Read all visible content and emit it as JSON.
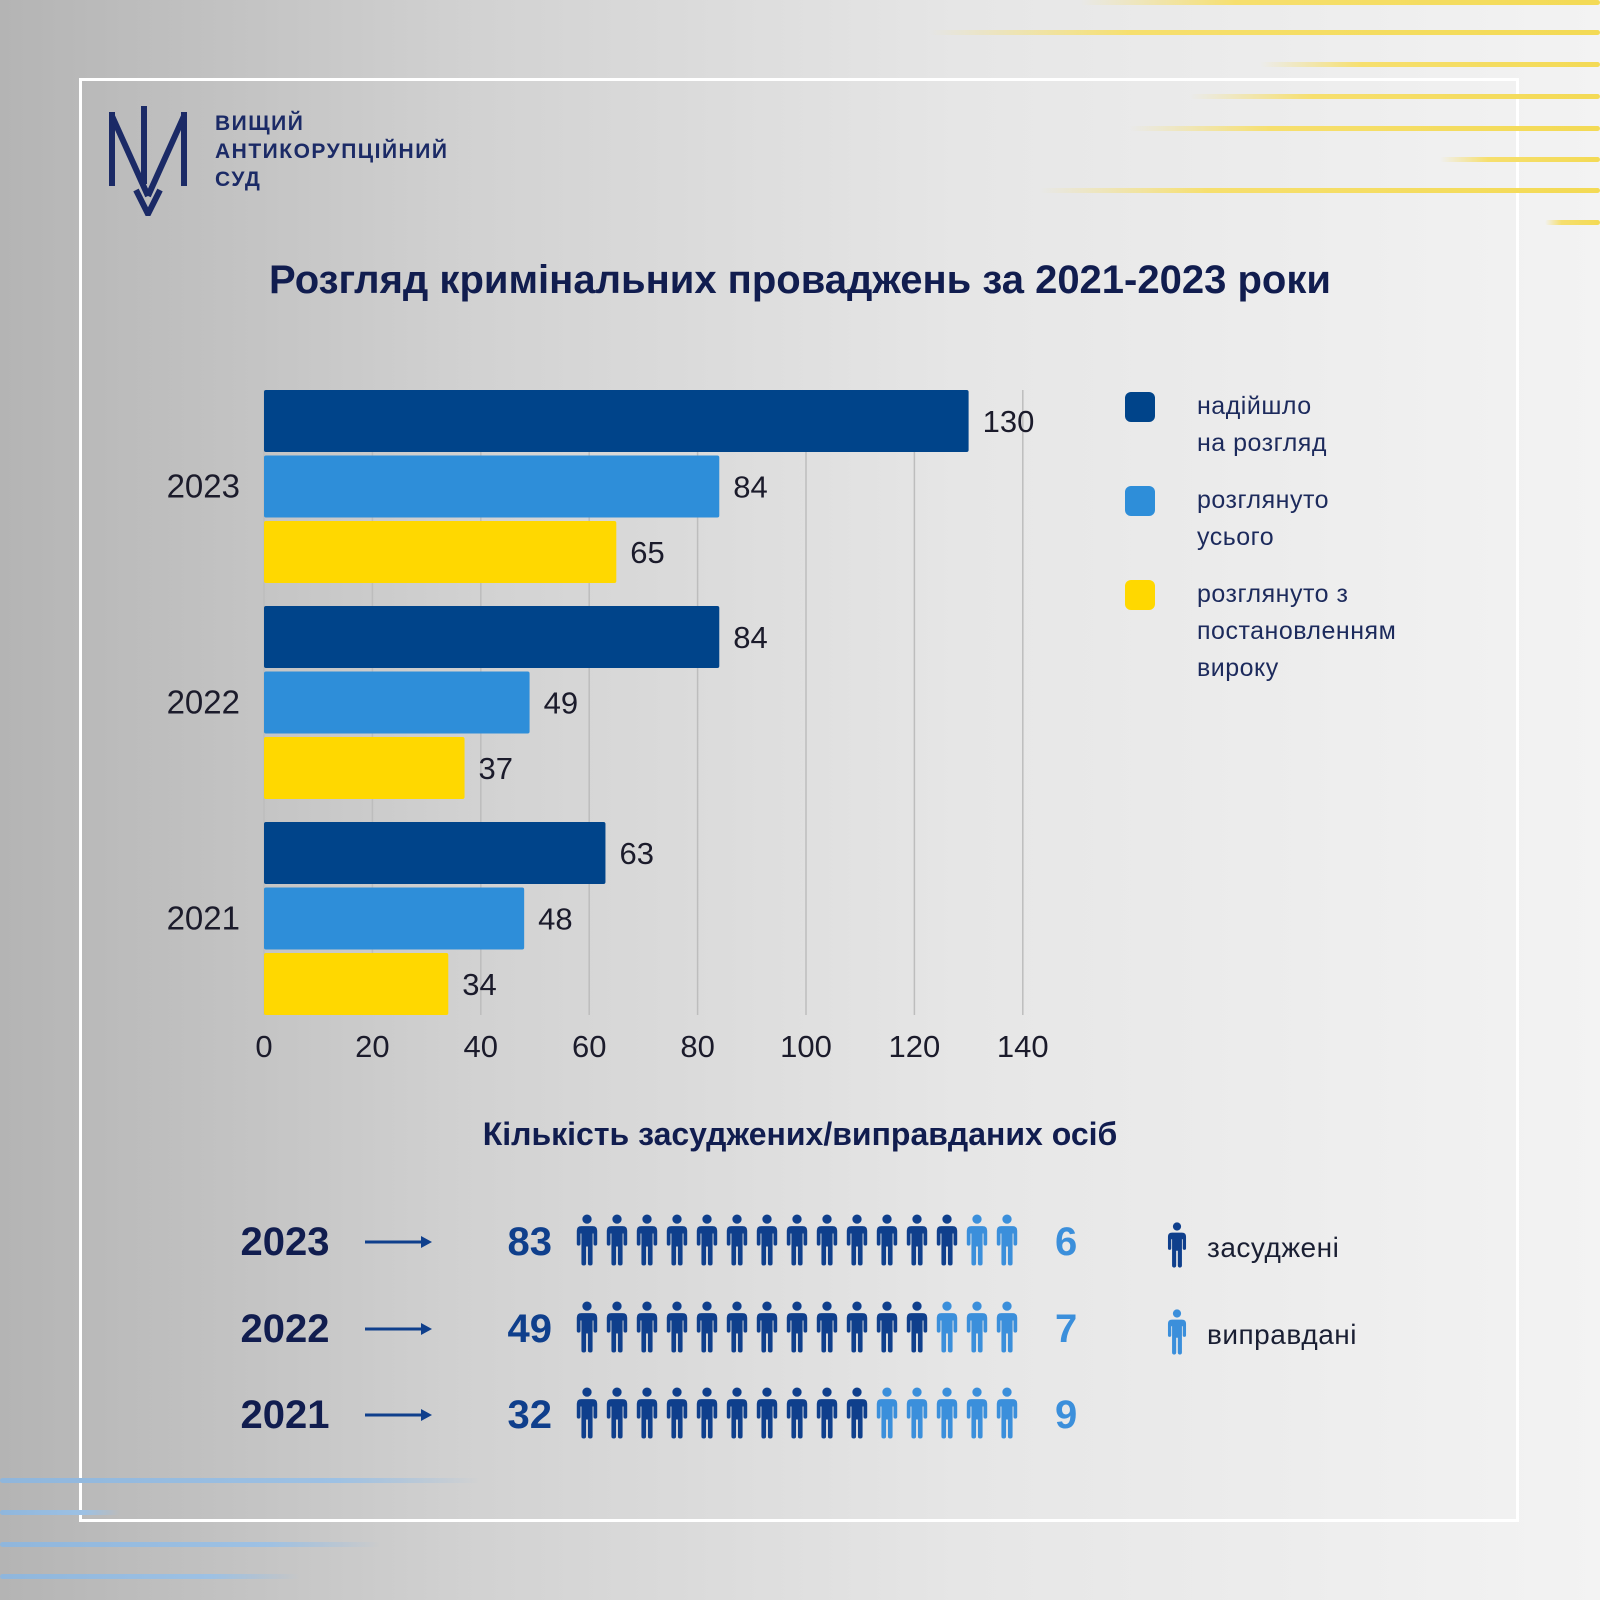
{
  "logo": {
    "icon": "court-emblem-icon",
    "lines": [
      "ВИЩИЙ",
      "АНТИКОРУПЦІЙНИЙ",
      "СУД"
    ]
  },
  "title": "Розгляд кримінальних проваджень за 2021-2023 роки",
  "colors": {
    "navy": "#00448a",
    "blue": "#2e8ed9",
    "yellow": "#ffd800",
    "convicted": "#0f3f8c",
    "acquitted": "#3b8fdb",
    "text_dark": "#111d4f"
  },
  "chart_data": {
    "type": "bar",
    "orientation": "horizontal",
    "categories": [
      "2023",
      "2022",
      "2021"
    ],
    "series": [
      {
        "name": "надійшло на розгляд",
        "label_lines": [
          "надійшло",
          "на розгляд"
        ],
        "color": "#00448a",
        "values": [
          130,
          84,
          63
        ]
      },
      {
        "name": "розглянуто усього",
        "label_lines": [
          "розглянуто",
          "усього"
        ],
        "color": "#2e8ed9",
        "values": [
          84,
          49,
          48
        ]
      },
      {
        "name": "розглянуто з постановленням вироку",
        "label_lines": [
          "розглянуто з",
          "постановленням",
          "вироку"
        ],
        "color": "#ffd800",
        "values": [
          65,
          37,
          34
        ]
      }
    ],
    "xlim": [
      0,
      140
    ],
    "xticks": [
      "0",
      "20",
      "40",
      "60",
      "80",
      "100",
      "120",
      "140"
    ],
    "grid": true,
    "legend_position": "right",
    "data_labels": true
  },
  "people": {
    "title": "Кількість засуджених/виправданих осіб",
    "rows": [
      {
        "year": "2023",
        "convicted": "83",
        "acquitted": "6",
        "convicted_icons": 13,
        "acquitted_icons": 2
      },
      {
        "year": "2022",
        "convicted": "49",
        "acquitted": "7",
        "convicted_icons": 12,
        "acquitted_icons": 3
      },
      {
        "year": "2021",
        "convicted": "32",
        "acquitted": "9",
        "convicted_icons": 10,
        "acquitted_icons": 5
      }
    ],
    "legend": {
      "convicted_label": "засуджені",
      "acquitted_label": "виправдані"
    }
  }
}
